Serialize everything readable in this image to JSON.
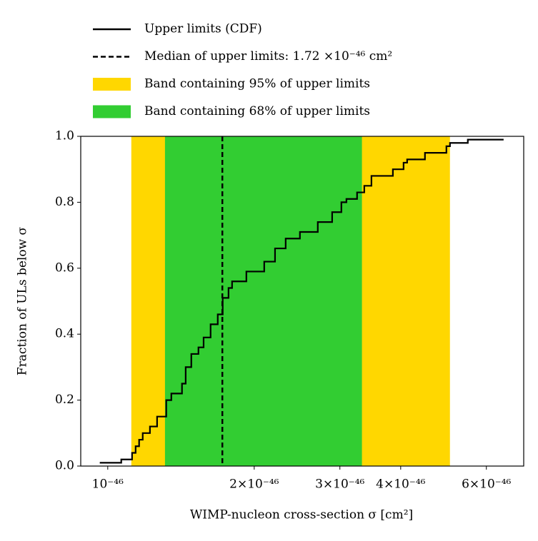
{
  "chart_data": {
    "type": "step",
    "x_label": "WIMP-nucleon cross-section σ [cm²]",
    "y_label": "Fraction of ULs below σ",
    "log_x": true,
    "xlim": [
      8.8e-47,
      7.16e-46
    ],
    "ylim": [
      0,
      1
    ],
    "xticks": [
      {
        "value": 1e-46,
        "label": "10⁻⁴⁶"
      },
      {
        "value": 2e-46,
        "label": "2×10⁻⁴⁶"
      },
      {
        "value": 3e-46,
        "label": "3×10⁻⁴⁶"
      },
      {
        "value": 4e-46,
        "label": "4×10⁻⁴⁶"
      },
      {
        "value": 6e-46,
        "label": "6×10⁻⁴⁶"
      }
    ],
    "yticks": [
      {
        "value": 0,
        "label": "0.0"
      },
      0.2,
      0.4,
      0.6,
      0.8,
      {
        "value": 1,
        "label": "1.0"
      }
    ],
    "bands": [
      {
        "name": "Band containing 95% of upper limits",
        "color": "#ffd700",
        "range": [
          1.118e-46,
          5.05e-46
        ]
      },
      {
        "name": "Band containing 68% of upper limits",
        "color": "#32cd32",
        "range": [
          1.311e-46,
          3.33e-46
        ]
      }
    ],
    "median": {
      "name": "Median of upper limits: 1.72 ×10⁻⁴⁶ cm²",
      "value": 1.72e-46,
      "color": "#000000"
    },
    "series": [
      {
        "name": "Upper limits (CDF)",
        "color": "#000000",
        "x": [
          9.63e-47,
          1.066e-46,
          1.122e-46,
          1.141e-46,
          1.16e-46,
          1.18e-46,
          1.221e-46,
          1.263e-46,
          1.319e-46,
          1.351e-46,
          1.421e-46,
          1.446e-46,
          1.485e-46,
          1.536e-46,
          1.574e-46,
          1.627e-46,
          1.683e-46,
          1.723e-46,
          1.771e-46,
          1.801e-46,
          1.927e-46,
          2.097e-46,
          2.207e-46,
          2.321e-46,
          2.483e-46,
          2.702e-46,
          2.892e-46,
          3.021e-46,
          3.094e-46,
          3.254e-46,
          3.367e-46,
          3.483e-46,
          3.855e-46,
          4.055e-46,
          4.124e-46,
          4.487e-46,
          4.966e-46,
          5.051e-46,
          5.496e-46,
          6.51e-46
        ],
        "values": [
          0.01,
          0.02,
          0.04,
          0.06,
          0.08,
          0.1,
          0.12,
          0.15,
          0.2,
          0.22,
          0.25,
          0.3,
          0.34,
          0.36,
          0.39,
          0.43,
          0.46,
          0.51,
          0.54,
          0.56,
          0.59,
          0.62,
          0.66,
          0.69,
          0.71,
          0.74,
          0.77,
          0.8,
          0.81,
          0.83,
          0.85,
          0.88,
          0.9,
          0.92,
          0.93,
          0.95,
          0.97,
          0.98,
          0.99,
          0.99
        ]
      }
    ]
  }
}
